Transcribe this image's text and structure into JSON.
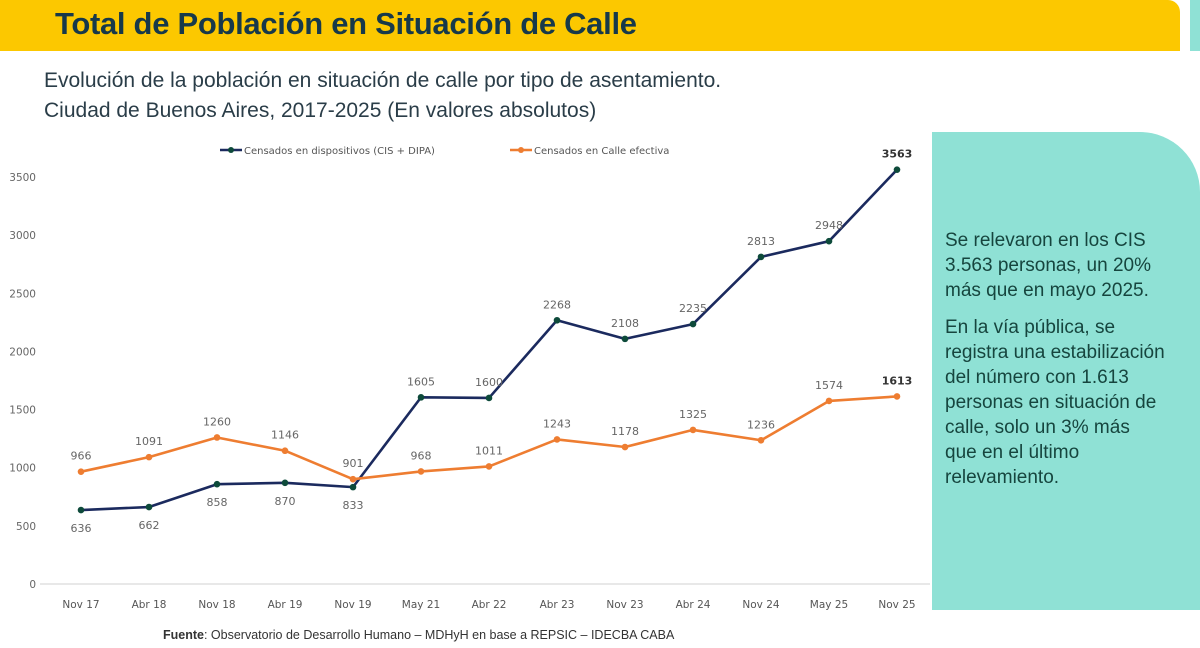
{
  "header": {
    "title": "Total de Población en Situación de Calle"
  },
  "subtitle": {
    "line1": "Evolución de la población en situación de calle por tipo de asentamiento.",
    "line2": "Ciudad de Buenos Aires, 2017-2025 (En valores  absolutos)"
  },
  "colors": {
    "banner": "#fcc800",
    "panel": "#8fe1d5",
    "series_dispositivos": "#1b2a5e",
    "series_calle": "#ee7d31",
    "marker_dispositivos": "#0d4a3a"
  },
  "side_panel": {
    "paragraph1": [
      "Se relevaron en los CIS",
      "3.563 personas, un 20%",
      "más que en mayo 2025."
    ],
    "paragraph2": [
      "En la vía pública, se",
      "registra una estabilización",
      "del número con 1.613",
      "personas en situación de",
      "calle, solo un 3% más",
      "que en el último",
      "relevamiento."
    ]
  },
  "source": {
    "label": "Fuente",
    "text": ": Observatorio de Desarrollo Humano – MDHyH en base a REPSIC – IDECBA CABA"
  },
  "chart_data": {
    "type": "line",
    "title": "Evolución de la población en situación de calle por tipo de asentamiento. Ciudad de Buenos Aires, 2017-2025 (En valores absolutos)",
    "xlabel": "",
    "ylabel": "",
    "categories": [
      "Nov 17",
      "Abr 18",
      "Nov 18",
      "Abr 19",
      "Nov 19",
      "May 21",
      "Abr 22",
      "Abr 23",
      "Nov 23",
      "Abr 24",
      "Nov 24",
      "May 25",
      "Nov 25"
    ],
    "yticks": [
      0,
      500,
      1000,
      1500,
      2000,
      2500,
      3000,
      3500
    ],
    "ylim": [
      0,
      3500
    ],
    "grid": false,
    "legend_position": "top",
    "series": [
      {
        "name": "Censados en dispositivos (CIS + DIPA)",
        "key": "dispositivos",
        "values": [
          636,
          662,
          858,
          870,
          833,
          1605,
          1600,
          2268,
          2108,
          2235,
          2813,
          2948,
          3563
        ],
        "label_pos": [
          "below",
          "below",
          "below",
          "below",
          "below",
          "above",
          "above",
          "above",
          "above",
          "above",
          "above",
          "above",
          "above"
        ]
      },
      {
        "name": "Censados en Calle efectiva",
        "key": "calle",
        "values": [
          966,
          1091,
          1260,
          1146,
          901,
          968,
          1011,
          1243,
          1178,
          1325,
          1236,
          1574,
          1613
        ],
        "label_pos": [
          "above",
          "above",
          "above",
          "above",
          "above",
          "above",
          "above",
          "above",
          "above",
          "above",
          "above",
          "above",
          "above"
        ]
      }
    ],
    "bold_last_label": true
  }
}
